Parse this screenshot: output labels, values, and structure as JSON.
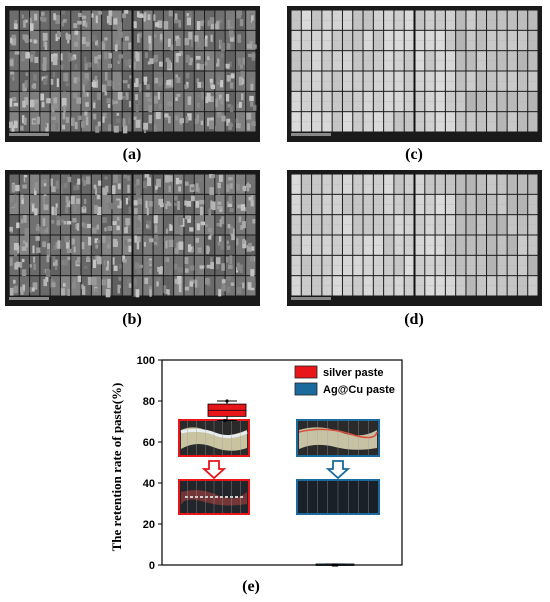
{
  "captions": {
    "a": "(a)",
    "b": "(b)",
    "c": "(c)",
    "d": "(d)",
    "e": "(e)"
  },
  "panels": {
    "a": {
      "module_tone": "dark",
      "cell_rows": 6,
      "cell_cols": 24,
      "busbars": 2
    },
    "b": {
      "module_tone": "dark",
      "cell_rows": 6,
      "cell_cols": 24,
      "busbars": 2
    },
    "c": {
      "module_tone": "light",
      "cell_rows": 6,
      "cell_cols": 24,
      "busbars": 2
    },
    "d": {
      "module_tone": "light",
      "cell_rows": 6,
      "cell_cols": 24,
      "busbars": 2
    }
  },
  "colors": {
    "silver": "#e8161b",
    "agcu": "#1a6a9e",
    "frame": "#1a1a1a",
    "dark_cell": "#6c6c6c",
    "light_cell": "#cfcfcf"
  },
  "chart_data": {
    "type": "box",
    "ylabel": "The retention rate of paste(%)",
    "ylim": [
      0,
      100
    ],
    "yticks": [
      0,
      20,
      40,
      60,
      80,
      100
    ],
    "legend": [
      {
        "name": "silver paste",
        "color": "#e8161b"
      },
      {
        "name": "Ag@Cu paste",
        "color": "#1a6a9e"
      }
    ],
    "legend_position": "top-right",
    "series": [
      {
        "name": "silver paste",
        "q1": 72.5,
        "median": 75.5,
        "q3": 78.5,
        "whisker_low": 70.5,
        "whisker_high": 80,
        "points": [
          70.5,
          80
        ]
      },
      {
        "name": "Ag@Cu paste",
        "q1": 0,
        "median": 0,
        "q3": 0.5,
        "whisker_low": 0,
        "whisker_high": 0.5,
        "points": [
          0,
          0,
          0
        ]
      }
    ]
  }
}
